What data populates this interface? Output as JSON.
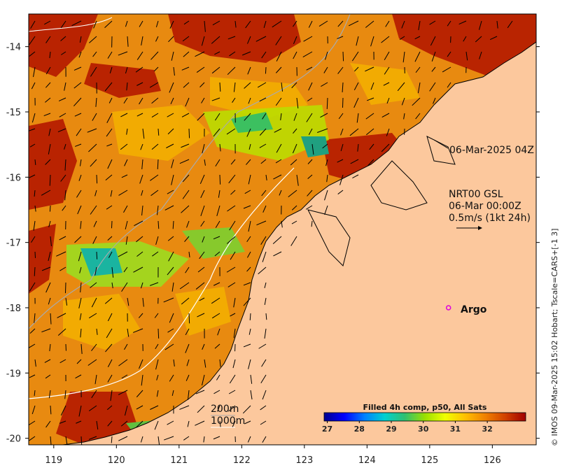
{
  "map": {
    "lon_ticks": [
      "119",
      "120",
      "121",
      "122",
      "123",
      "124",
      "125",
      "126"
    ],
    "lat_ticks": [
      "-14",
      "-15",
      "-16",
      "-17",
      "-18",
      "-19",
      "-20"
    ],
    "extent": {
      "lon": [
        118.6,
        126.7
      ],
      "lat": [
        -20.1,
        -13.5
      ]
    },
    "timestamp_label": "06-Mar-2025 04Z",
    "current_source": "NRT00 GSL",
    "current_time": "06-Mar 00:00Z",
    "current_scale": "0.5m/s (1kt 24h)",
    "argo_label": "Argo",
    "argo_position": {
      "lon": 125.3,
      "lat": -18.0
    },
    "isobath_labels": [
      "200m",
      "1000m"
    ],
    "credit": "© IMOS 09-Mar-2025 15:02 Hobart; Tscale=CARS+[-1 3]",
    "colors": {
      "land": "#fcc89d",
      "coast": "#000000",
      "argo_marker": "#dd00dd",
      "isobath_200": "#aaaaaa",
      "isobath_1000": "#ffffff"
    }
  },
  "colorbar": {
    "title": "Filled 4h comp, p50, All Sats",
    "ticks": [
      "27",
      "28",
      "29",
      "30",
      "31",
      "32"
    ],
    "range": [
      26.9,
      33.2
    ],
    "stops": [
      "#00008f",
      "#0000ff",
      "#0080ff",
      "#00d0d0",
      "#30c070",
      "#9ae000",
      "#f0ff00",
      "#ffc000",
      "#f08000",
      "#d04000",
      "#a00000"
    ]
  }
}
